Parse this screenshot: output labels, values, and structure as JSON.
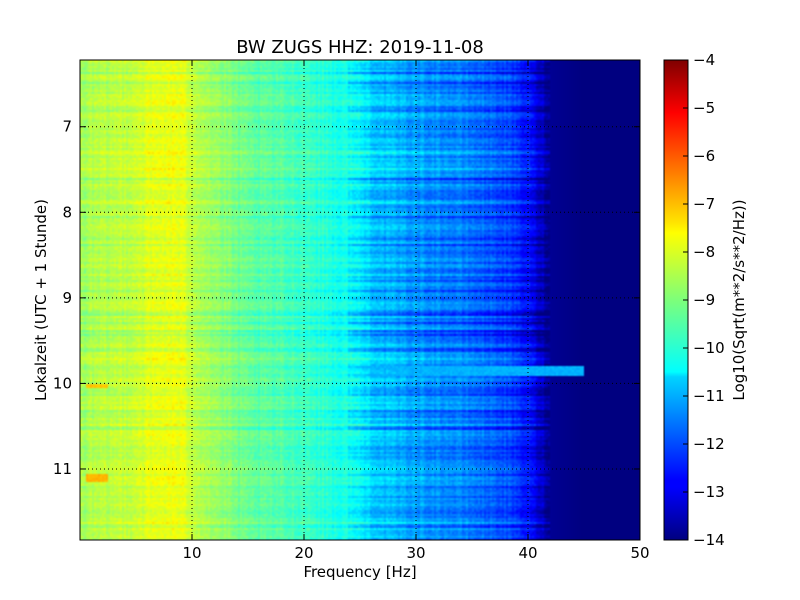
{
  "chart_data": {
    "type": "heatmap",
    "title": "BW ZUGS HHZ: 2019-11-08",
    "xlabel": "Frequency [Hz]",
    "ylabel": "Lokalzeit (UTC + 1 Stunde)",
    "colorbar_label": "Log10(Sqrt(m**2/s**2/Hz))",
    "xlim": [
      0,
      50
    ],
    "ylim": [
      6.22,
      11.83
    ],
    "y_inverted": true,
    "x_ticks": [
      10,
      20,
      30,
      40,
      50
    ],
    "x_tick_labels": [
      "10",
      "20",
      "30",
      "40",
      "50"
    ],
    "y_ticks": [
      7,
      8,
      9,
      10,
      11
    ],
    "y_tick_labels": [
      "7",
      "8",
      "9",
      "10",
      "11"
    ],
    "color_range": [
      -14,
      -4
    ],
    "colorbar_ticks": [
      -4,
      -5,
      -6,
      -7,
      -8,
      -9,
      -10,
      -11,
      -12,
      -13,
      -14
    ],
    "colorbar_tick_labels": [
      "−4",
      "−5",
      "−6",
      "−7",
      "−8",
      "−9",
      "−10",
      "−11",
      "−12",
      "−13",
      "−14"
    ],
    "colormap": "jet",
    "grid": true,
    "frequency_profile": {
      "frequency_hz": [
        0,
        2,
        5,
        8,
        9,
        12,
        15,
        20,
        24,
        27,
        30,
        35,
        38,
        40,
        42,
        45,
        50
      ],
      "log10_amplitude": [
        -8.6,
        -8.5,
        -8.2,
        -7.9,
        -8.0,
        -8.7,
        -9.3,
        -9.6,
        -10.1,
        -10.9,
        -11.2,
        -11.6,
        -12.0,
        -12.6,
        -13.8,
        -14.0,
        -14.0
      ]
    },
    "features": [
      {
        "frequency_hz": [
          0.5,
          2.5
        ],
        "time_h": [
          10.0,
          10.06
        ],
        "log10_amplitude": -7.2
      },
      {
        "frequency_hz": [
          0.5,
          2.5
        ],
        "time_h": [
          11.05,
          11.15
        ],
        "log10_amplitude": -7.0
      },
      {
        "frequency_hz": [
          25,
          45
        ],
        "time_h": [
          9.8,
          9.92
        ],
        "log10_amplitude": -11.0
      }
    ]
  }
}
